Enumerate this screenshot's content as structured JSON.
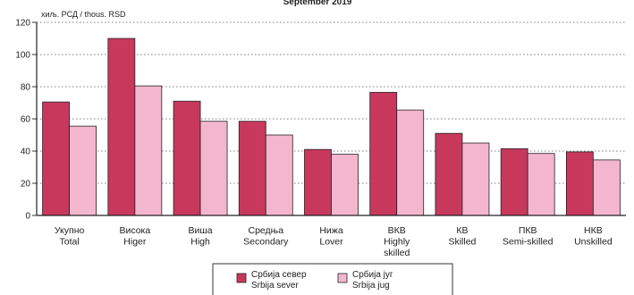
{
  "chart_data": {
    "type": "bar",
    "title": "September 2019",
    "ylabel": "хиљ. РСД / thous. RSD",
    "ylim": [
      0,
      120
    ],
    "yticks": [
      0,
      20,
      40,
      60,
      80,
      100,
      120
    ],
    "grid": "horizontal dotted",
    "legend_position": "bottom-center",
    "categories": [
      [
        "Укупно",
        "Total"
      ],
      [
        "Висока",
        "Higer"
      ],
      [
        "Виша",
        "High"
      ],
      [
        "Средња",
        "Secondary"
      ],
      [
        "Нижа",
        "Lover"
      ],
      [
        "ВКВ",
        "Highly",
        "skilled"
      ],
      [
        "КВ",
        "Skilled"
      ],
      [
        "ПКВ",
        "Semi-skilled"
      ],
      [
        "НКВ",
        "Unskilled"
      ]
    ],
    "series": [
      {
        "name": [
          "Србија север",
          "Srbija sever"
        ],
        "color": "#c8385d",
        "values": [
          70.5,
          110,
          71,
          58.5,
          41,
          76.5,
          51,
          41.5,
          39.5
        ]
      },
      {
        "name": [
          "Србија југ",
          "Srbija jug"
        ],
        "color": "#f4b6cd",
        "values": [
          55.5,
          80.5,
          58.5,
          50,
          38,
          65.5,
          45,
          38.5,
          34.5
        ]
      }
    ]
  }
}
